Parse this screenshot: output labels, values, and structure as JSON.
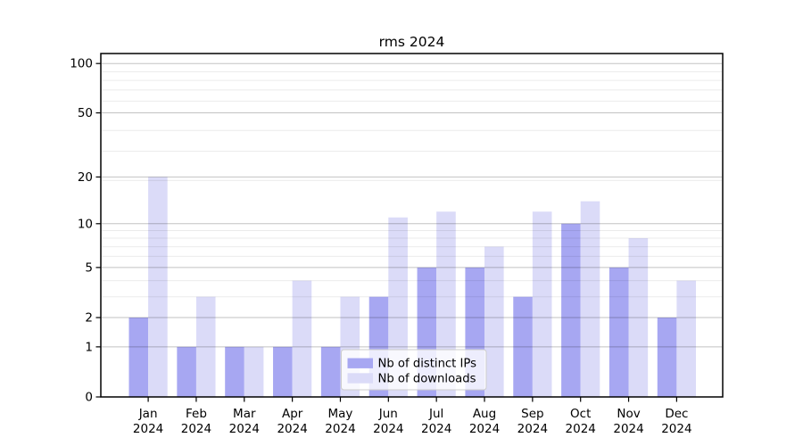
{
  "chart_data": {
    "type": "bar",
    "title": "rms 2024",
    "categories": [
      {
        "month": "Jan",
        "year": "2024"
      },
      {
        "month": "Feb",
        "year": "2024"
      },
      {
        "month": "Mar",
        "year": "2024"
      },
      {
        "month": "Apr",
        "year": "2024"
      },
      {
        "month": "May",
        "year": "2024"
      },
      {
        "month": "Jun",
        "year": "2024"
      },
      {
        "month": "Jul",
        "year": "2024"
      },
      {
        "month": "Aug",
        "year": "2024"
      },
      {
        "month": "Sep",
        "year": "2024"
      },
      {
        "month": "Oct",
        "year": "2024"
      },
      {
        "month": "Nov",
        "year": "2024"
      },
      {
        "month": "Dec",
        "year": "2024"
      }
    ],
    "series": [
      {
        "name": "Nb of distinct IPs",
        "color": "#a7a7f2",
        "values": [
          2,
          1,
          1,
          1,
          1,
          3,
          5,
          5,
          3,
          10,
          5,
          2
        ]
      },
      {
        "name": "Nb of downloads",
        "color": "#dbdbf8",
        "values": [
          20,
          3,
          1,
          4,
          3,
          11,
          12,
          7,
          12,
          14,
          8,
          4
        ]
      }
    ],
    "yscale": "log10(1+y)",
    "yticks": [
      0,
      1,
      2,
      5,
      10,
      20,
      50,
      100
    ],
    "minor_yticks": [
      3,
      4,
      6,
      7,
      8,
      9,
      19,
      29,
      39,
      59,
      69,
      79,
      89
    ],
    "ylim": [
      0,
      115
    ],
    "xlabel": "",
    "ylabel": "",
    "grid": true,
    "legend_position": "lower center"
  },
  "colors": {
    "major_grid": "rgba(0,0,0,0.24)",
    "minor_grid": "rgba(0,0,0,0.08)",
    "spine": "#000000",
    "legend_bg": "rgba(255,255,255,0.8)",
    "legend_border": "#cccccc"
  }
}
